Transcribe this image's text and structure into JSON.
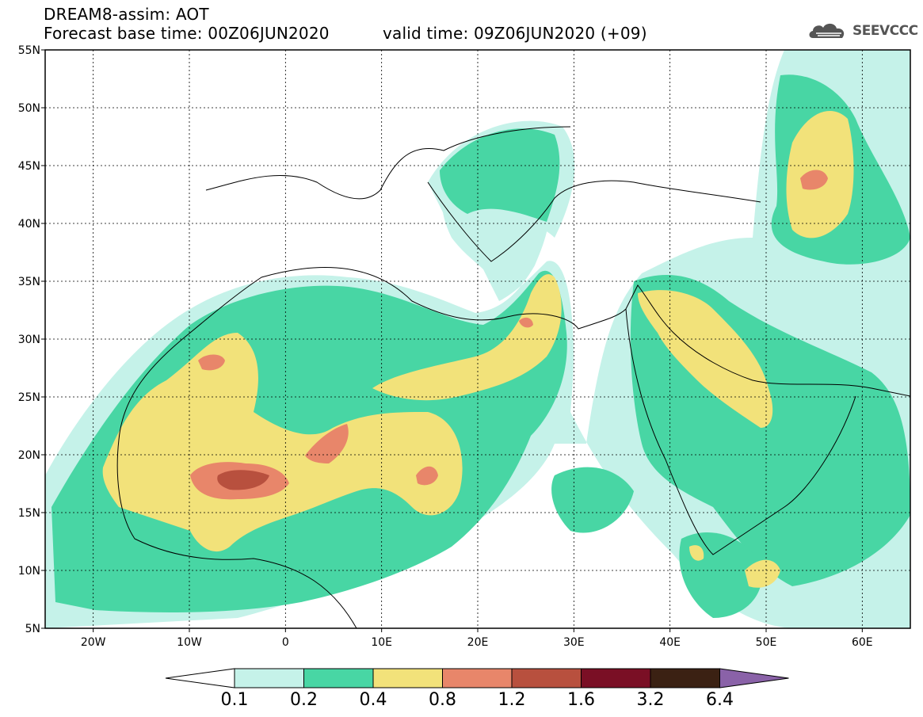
{
  "header": {
    "title": "DREAM8-assim: AOT",
    "base_time": "Forecast base time: 00Z06JUN2020",
    "valid_time": "valid time: 09Z06JUN2020 (+09)"
  },
  "logo": {
    "text": "SEEVCCC",
    "icon": "cloud-icon"
  },
  "map": {
    "lon_range": [
      -25,
      65
    ],
    "lat_range": [
      5,
      55
    ],
    "lat_ticks": [
      {
        "v": 55,
        "label": "55N"
      },
      {
        "v": 50,
        "label": "50N"
      },
      {
        "v": 45,
        "label": "45N"
      },
      {
        "v": 40,
        "label": "40N"
      },
      {
        "v": 35,
        "label": "35N"
      },
      {
        "v": 30,
        "label": "30N"
      },
      {
        "v": 25,
        "label": "25N"
      },
      {
        "v": 20,
        "label": "20N"
      },
      {
        "v": 15,
        "label": "15N"
      },
      {
        "v": 10,
        "label": "10N"
      },
      {
        "v": 5,
        "label": "5N"
      }
    ],
    "lon_ticks": [
      {
        "v": -20,
        "label": "20W"
      },
      {
        "v": -10,
        "label": "10W"
      },
      {
        "v": 0,
        "label": "0"
      },
      {
        "v": 10,
        "label": "10E"
      },
      {
        "v": 20,
        "label": "20E"
      },
      {
        "v": 30,
        "label": "30E"
      },
      {
        "v": 40,
        "label": "40E"
      },
      {
        "v": 50,
        "label": "50E"
      },
      {
        "v": 60,
        "label": "60E"
      }
    ],
    "grid": true
  },
  "colorbar": {
    "colors": [
      "#c5f2e9",
      "#48d6a4",
      "#f2e27a",
      "#e8866a",
      "#b8503e",
      "#7a0f25",
      "#3b2113"
    ],
    "under_color": "#ffffff",
    "over_color": "#8a62a8",
    "labels": [
      "0.1",
      "0.2",
      "0.4",
      "0.8",
      "1.2",
      "1.6",
      "3.2",
      "6.4"
    ]
  }
}
